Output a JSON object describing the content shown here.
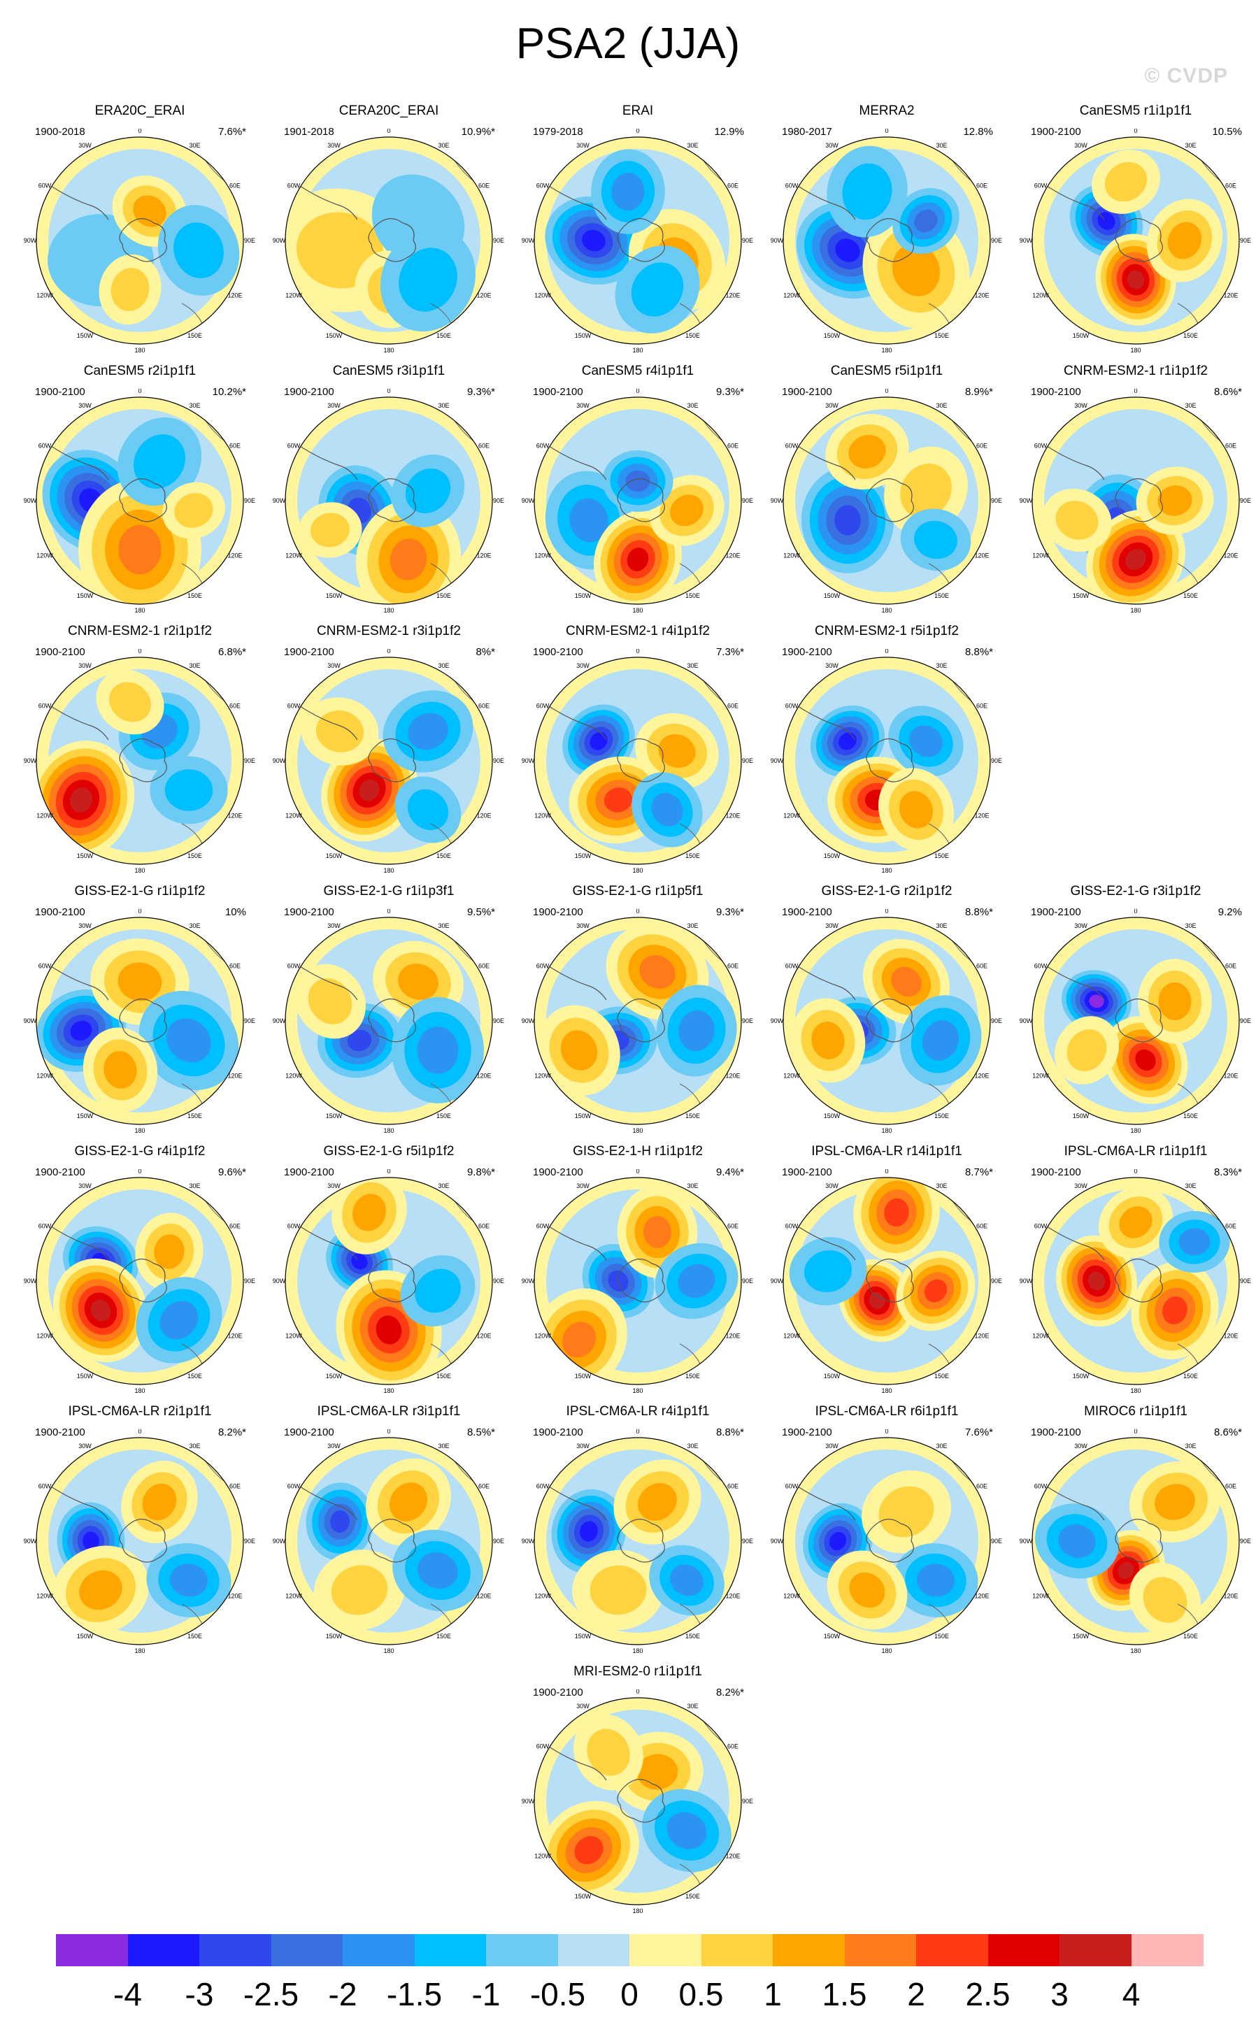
{
  "title": "PSA2 (JJA)",
  "watermark": "© CVDP",
  "lon_labels": [
    "0",
    "30E",
    "60E",
    "90E",
    "120E",
    "150E",
    "180",
    "150W",
    "120W",
    "90W",
    "60W",
    "30W"
  ],
  "colorbar": {
    "colors": [
      "#8a2be2",
      "#1e1aff",
      "#2e47ee",
      "#3a6fe0",
      "#2b93f2",
      "#00bfff",
      "#6ccbf4",
      "#b7e0f6",
      "#fff59d",
      "#ffd23f",
      "#ffa500",
      "#ff7a18",
      "#ff3b14",
      "#e00000",
      "#c81e1e",
      "#ffb6b6"
    ],
    "labels": [
      "-4",
      "-3",
      "-2.5",
      "-2",
      "-1.5",
      "-1",
      "-0.5",
      "0",
      "0.5",
      "1",
      "1.5",
      "2",
      "2.5",
      "3",
      "4"
    ]
  },
  "panels": [
    {
      "title": "ERA20C_ERAI",
      "period": "1900-2018",
      "pct": "7.6%*"
    },
    {
      "title": "CERA20C_ERAI",
      "period": "1901-2018",
      "pct": "10.9%*"
    },
    {
      "title": "ERAI",
      "period": "1979-2018",
      "pct": "12.9%"
    },
    {
      "title": "MERRA2",
      "period": "1980-2017",
      "pct": "12.8%"
    },
    {
      "title": "CanESM5 r1i1p1f1",
      "period": "1900-2100",
      "pct": "10.5%"
    },
    {
      "title": "CanESM5 r2i1p1f1",
      "period": "1900-2100",
      "pct": "10.2%*"
    },
    {
      "title": "CanESM5 r3i1p1f1",
      "period": "1900-2100",
      "pct": "9.3%*"
    },
    {
      "title": "CanESM5 r4i1p1f1",
      "period": "1900-2100",
      "pct": "9.3%*"
    },
    {
      "title": "CanESM5 r5i1p1f1",
      "period": "1900-2100",
      "pct": "8.9%*"
    },
    {
      "title": "CNRM-ESM2-1 r1i1p1f2",
      "period": "1900-2100",
      "pct": "8.6%*"
    },
    {
      "title": "CNRM-ESM2-1 r2i1p1f2",
      "period": "1900-2100",
      "pct": "6.8%*"
    },
    {
      "title": "CNRM-ESM2-1 r3i1p1f2",
      "period": "1900-2100",
      "pct": "8%*"
    },
    {
      "title": "CNRM-ESM2-1 r4i1p1f2",
      "period": "1900-2100",
      "pct": "7.3%*"
    },
    {
      "title": "CNRM-ESM2-1 r5i1p1f2",
      "period": "1900-2100",
      "pct": "8.8%*"
    },
    {
      "title": "GISS-E2-1-G r1i1p1f2",
      "period": "1900-2100",
      "pct": "10%"
    },
    {
      "title": "GISS-E2-1-G r1i1p3f1",
      "period": "1900-2100",
      "pct": "9.5%*"
    },
    {
      "title": "GISS-E2-1-G r1i1p5f1",
      "period": "1900-2100",
      "pct": "9.3%*"
    },
    {
      "title": "GISS-E2-1-G r2i1p1f2",
      "period": "1900-2100",
      "pct": "8.8%*"
    },
    {
      "title": "GISS-E2-1-G r3i1p1f2",
      "period": "1900-2100",
      "pct": "9.2%"
    },
    {
      "title": "GISS-E2-1-G r4i1p1f2",
      "period": "1900-2100",
      "pct": "9.6%*"
    },
    {
      "title": "GISS-E2-1-G r5i1p1f2",
      "period": "1900-2100",
      "pct": "9.8%*"
    },
    {
      "title": "GISS-E2-1-H r1i1p1f2",
      "period": "1900-2100",
      "pct": "9.4%*"
    },
    {
      "title": "IPSL-CM6A-LR r14i1p1f1",
      "period": "1900-2100",
      "pct": "8.7%*"
    },
    {
      "title": "IPSL-CM6A-LR r1i1p1f1",
      "period": "1900-2100",
      "pct": "8.3%*"
    },
    {
      "title": "IPSL-CM6A-LR r2i1p1f1",
      "period": "1900-2100",
      "pct": "8.2%*"
    },
    {
      "title": "IPSL-CM6A-LR r3i1p1f1",
      "period": "1900-2100",
      "pct": "8.5%*"
    },
    {
      "title": "IPSL-CM6A-LR r4i1p1f1",
      "period": "1900-2100",
      "pct": "8.8%*"
    },
    {
      "title": "IPSL-CM6A-LR r6i1p1f1",
      "period": "1900-2100",
      "pct": "7.6%*"
    },
    {
      "title": "MIROC6 r1i1p1f1",
      "period": "1900-2100",
      "pct": "8.6%*"
    },
    {
      "title": "MRI-ESM2-0 r1i1p1f1",
      "period": "1900-2100",
      "pct": "8.2%*"
    }
  ]
}
